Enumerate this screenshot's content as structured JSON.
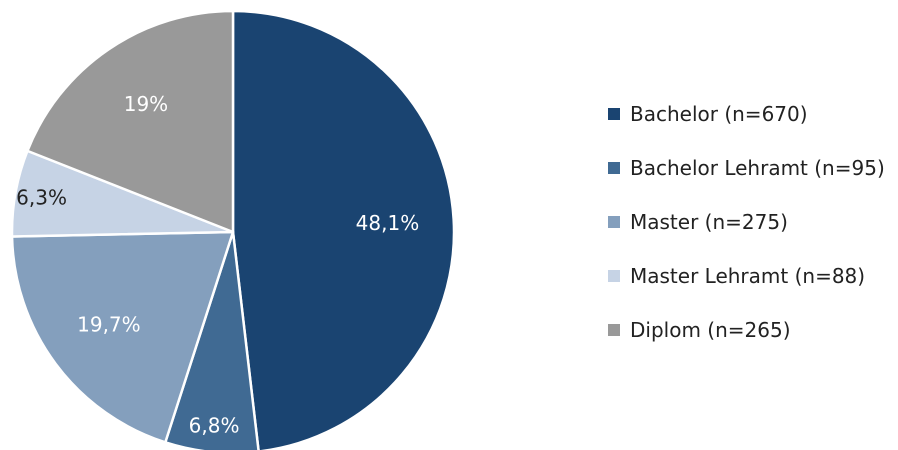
{
  "chart_data": {
    "type": "pie",
    "title": "",
    "start_angle": "12 o'clock, clockwise",
    "slices": [
      {
        "label": "Bachelor (n=670)",
        "value": 48.1,
        "data_label": "48,1%",
        "color": "#1a4471",
        "label_color": "#ffffff"
      },
      {
        "label": "Bachelor Lehramt (n=95)",
        "value": 6.8,
        "data_label": "6,8%",
        "color": "#406a93",
        "label_color": "#ffffff"
      },
      {
        "label": "Master (n=275)",
        "value": 19.7,
        "data_label": "19,7%",
        "color": "#849fbd",
        "label_color": "#ffffff"
      },
      {
        "label": "Master Lehramt (n=88)",
        "value": 6.3,
        "data_label": "6,3%",
        "color": "#c6d3e5",
        "label_color": "#222222"
      },
      {
        "label": "Diplom (n=265)",
        "value": 19.0,
        "data_label": "19%",
        "color": "#999999",
        "label_color": "#ffffff"
      }
    ],
    "legend_position": "right"
  }
}
